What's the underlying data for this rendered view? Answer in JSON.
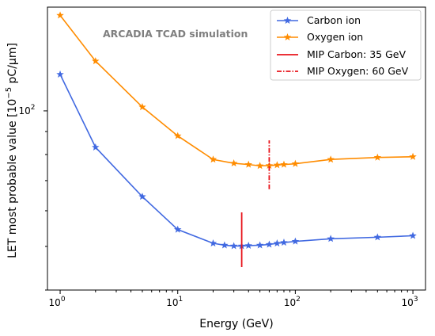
{
  "chart_data": {
    "type": "line",
    "xscale": "log",
    "yscale": "log",
    "xlabel": "Energy (GeV)",
    "ylabel_main": "LET most probable value [10",
    "ylabel_exp": "−5",
    "ylabel_tail": " pC/μm]",
    "xlim": [
      0.78,
      1280
    ],
    "ylim": [
      40,
      170
    ],
    "x_ticks": [
      {
        "value": 1,
        "base": "10",
        "exp": "0"
      },
      {
        "value": 10,
        "base": "10",
        "exp": "1"
      },
      {
        "value": 100,
        "base": "10",
        "exp": "2"
      },
      {
        "value": 1000,
        "base": "10",
        "exp": "3"
      }
    ],
    "y_ticks": [
      {
        "value": 100,
        "base": "10",
        "exp": "2"
      }
    ],
    "annotation": "ARCADIA TCAD simulation",
    "series": [
      {
        "name": "Carbon ion",
        "color": "#4169e1",
        "marker": "star",
        "x": [
          1,
          2,
          5,
          10,
          20,
          25,
          30,
          35,
          40,
          50,
          60,
          70,
          80,
          100,
          200,
          500,
          1000
        ],
        "y": [
          120.5,
          83,
          64.5,
          54.5,
          50.8,
          50.3,
          50.1,
          50.1,
          50.2,
          50.3,
          50.5,
          50.8,
          51,
          51.3,
          52,
          52.4,
          52.8
        ]
      },
      {
        "name": "Oxygen ion",
        "color": "#ff8c00",
        "marker": "star",
        "x": [
          1,
          2,
          5,
          10,
          20,
          30,
          40,
          50,
          60,
          70,
          80,
          100,
          200,
          500,
          1000
        ],
        "y": [
          163,
          129,
          102,
          88,
          78,
          76.5,
          76,
          75.5,
          75.6,
          75.8,
          76,
          76.3,
          78,
          78.8,
          79.1
        ]
      }
    ],
    "vlines": [
      {
        "name": "MIP Carbon: 35 GeV",
        "x": 35,
        "y_range": [
          45,
          59.5
        ],
        "color": "#e8141b",
        "style": "solid"
      },
      {
        "name": "MIP Oxygen: 60 GeV",
        "x": 60,
        "y_range": [
          67,
          86
        ],
        "color": "#e8141b",
        "style": "dashdot"
      }
    ],
    "legend_position": "top-right",
    "grid": false
  }
}
